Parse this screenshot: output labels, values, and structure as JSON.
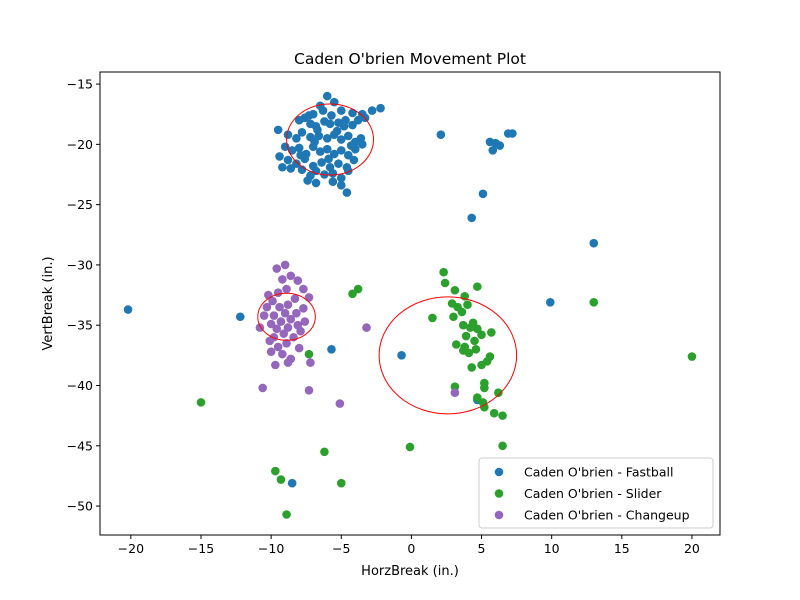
{
  "chart_data": {
    "type": "scatter",
    "title": "Caden O'brien Movement Plot",
    "xlabel": "HorzBreak (in.)",
    "ylabel": "VertBreak (in.)",
    "xlim": [
      -22.2,
      22.0
    ],
    "ylim": [
      -52.4,
      -14.0
    ],
    "xticks": [
      -20,
      -15,
      -10,
      -5,
      0,
      5,
      10,
      15,
      20
    ],
    "yticks": [
      -15,
      -20,
      -25,
      -30,
      -35,
      -40,
      -45,
      -50
    ],
    "grid": false,
    "legend_position": "lower-right",
    "series": [
      {
        "name": "Caden O'brien - Fastball",
        "color": "#1f77b4",
        "points": [
          [
            -6.5,
            -16.8
          ],
          [
            -7.0,
            -17.5
          ],
          [
            -5.0,
            -17.2
          ],
          [
            -4.2,
            -17.4
          ],
          [
            -3.5,
            -17.5
          ],
          [
            -2.8,
            -17.2
          ],
          [
            -2.2,
            -17.0
          ],
          [
            -6.0,
            -16.0
          ],
          [
            -5.5,
            -16.5
          ],
          [
            -7.6,
            -17.8
          ],
          [
            -8.0,
            -18.0
          ],
          [
            -7.2,
            -18.3
          ],
          [
            -6.8,
            -18.5
          ],
          [
            -6.2,
            -18.1
          ],
          [
            -5.8,
            -18.3
          ],
          [
            -5.2,
            -18.2
          ],
          [
            -4.8,
            -18.5
          ],
          [
            -4.2,
            -18.4
          ],
          [
            -3.8,
            -18.0
          ],
          [
            -3.3,
            -17.8
          ],
          [
            -9.5,
            -18.8
          ],
          [
            -8.8,
            -19.2
          ],
          [
            -8.2,
            -19.5
          ],
          [
            -7.8,
            -19.0
          ],
          [
            -7.2,
            -19.4
          ],
          [
            -6.6,
            -19.3
          ],
          [
            -6.0,
            -19.5
          ],
          [
            -5.5,
            -19.2
          ],
          [
            -5.0,
            -19.6
          ],
          [
            -4.5,
            -19.3
          ],
          [
            -4.0,
            -19.8
          ],
          [
            -3.6,
            -19.5
          ],
          [
            -9.0,
            -20.2
          ],
          [
            -8.5,
            -20.5
          ],
          [
            -8.0,
            -20.3
          ],
          [
            -7.5,
            -20.8
          ],
          [
            -7.0,
            -20.2
          ],
          [
            -6.5,
            -20.6
          ],
          [
            -6.0,
            -20.4
          ],
          [
            -5.5,
            -20.8
          ],
          [
            -5.0,
            -20.5
          ],
          [
            -4.5,
            -20.9
          ],
          [
            -4.0,
            -20.4
          ],
          [
            -3.5,
            -20.0
          ],
          [
            -9.4,
            -21.0
          ],
          [
            -8.8,
            -21.3
          ],
          [
            -8.2,
            -21.6
          ],
          [
            -7.6,
            -21.2
          ],
          [
            -7.0,
            -21.8
          ],
          [
            -6.4,
            -21.5
          ],
          [
            -5.8,
            -21.9
          ],
          [
            -5.2,
            -21.6
          ],
          [
            -4.6,
            -21.9
          ],
          [
            -4.1,
            -21.3
          ],
          [
            -9.2,
            -21.9
          ],
          [
            -8.6,
            -22.0
          ],
          [
            -7.8,
            -22.1
          ],
          [
            -7.2,
            -22.6
          ],
          [
            -6.8,
            -22.2
          ],
          [
            -6.2,
            -22.5
          ],
          [
            -5.6,
            -22.4
          ],
          [
            -5.0,
            -22.8
          ],
          [
            -4.5,
            -22.2
          ],
          [
            -7.4,
            -23.0
          ],
          [
            -6.8,
            -23.2
          ],
          [
            -5.6,
            -23.1
          ],
          [
            -5.0,
            -23.4
          ],
          [
            -4.6,
            -24.0
          ],
          [
            -6.3,
            -17.2
          ],
          [
            -5.7,
            -17.6
          ],
          [
            -5.3,
            -18.9
          ],
          [
            -6.9,
            -19.8
          ],
          [
            -4.7,
            -18.0
          ],
          [
            -7.9,
            -20.9
          ],
          [
            -5.9,
            -21.2
          ],
          [
            -6.7,
            -18.8
          ],
          [
            -4.3,
            -20.1
          ],
          [
            -7.3,
            -17.6
          ],
          [
            2.1,
            -19.2
          ],
          [
            5.6,
            -19.8
          ],
          [
            6.0,
            -19.9
          ],
          [
            6.3,
            -20.1
          ],
          [
            5.8,
            -20.5
          ],
          [
            6.9,
            -19.1
          ],
          [
            7.2,
            -19.1
          ],
          [
            5.1,
            -24.1
          ],
          [
            4.3,
            -26.1
          ],
          [
            13.0,
            -28.2
          ],
          [
            9.9,
            -33.1
          ],
          [
            -20.2,
            -33.7
          ],
          [
            -12.2,
            -34.3
          ],
          [
            -5.7,
            -37.0
          ],
          [
            -0.7,
            -37.5
          ],
          [
            4.7,
            -41.2
          ],
          [
            -8.5,
            -48.1
          ]
        ]
      },
      {
        "name": "Caden O'brien - Slider",
        "color": "#2ca02c",
        "points": [
          [
            2.3,
            -30.6
          ],
          [
            2.4,
            -31.5
          ],
          [
            4.7,
            -31.8
          ],
          [
            3.1,
            -32.1
          ],
          [
            3.8,
            -32.6
          ],
          [
            2.9,
            -33.2
          ],
          [
            3.3,
            -33.5
          ],
          [
            4.0,
            -33.3
          ],
          [
            3.6,
            -33.9
          ],
          [
            3.0,
            -34.3
          ],
          [
            1.5,
            -34.4
          ],
          [
            4.4,
            -34.8
          ],
          [
            3.7,
            -35.0
          ],
          [
            4.2,
            -35.2
          ],
          [
            4.7,
            -35.3
          ],
          [
            5.0,
            -35.8
          ],
          [
            5.7,
            -35.6
          ],
          [
            3.9,
            -35.9
          ],
          [
            4.5,
            -36.3
          ],
          [
            3.2,
            -36.6
          ],
          [
            3.8,
            -36.8
          ],
          [
            4.6,
            -37.0
          ],
          [
            4.1,
            -37.3
          ],
          [
            3.7,
            -37.1
          ],
          [
            5.6,
            -37.6
          ],
          [
            5.4,
            -38.0
          ],
          [
            5.0,
            -38.3
          ],
          [
            4.3,
            -38.5
          ],
          [
            5.2,
            -39.8
          ],
          [
            5.2,
            -40.2
          ],
          [
            3.1,
            -40.1
          ],
          [
            6.2,
            -40.6
          ],
          [
            4.7,
            -41.0
          ],
          [
            5.1,
            -41.4
          ],
          [
            5.2,
            -41.8
          ],
          [
            5.9,
            -42.3
          ],
          [
            6.5,
            -42.5
          ],
          [
            6.5,
            -45.0
          ],
          [
            13.0,
            -33.1
          ],
          [
            20.0,
            -37.6
          ],
          [
            -3.8,
            -32.0
          ],
          [
            -4.2,
            -32.4
          ],
          [
            -15.0,
            -41.4
          ],
          [
            -7.3,
            -37.4
          ],
          [
            -9.7,
            -47.1
          ],
          [
            -9.3,
            -47.8
          ],
          [
            -6.2,
            -45.5
          ],
          [
            -5.0,
            -48.1
          ],
          [
            -8.9,
            -50.7
          ],
          [
            -0.1,
            -45.1
          ]
        ]
      },
      {
        "name": "Caden O'brien - Changeup",
        "color": "#9467bd",
        "points": [
          [
            -9.0,
            -30.0
          ],
          [
            -9.6,
            -30.3
          ],
          [
            -8.6,
            -30.9
          ],
          [
            -9.2,
            -31.2
          ],
          [
            -8.1,
            -31.3
          ],
          [
            -7.7,
            -32.0
          ],
          [
            -8.9,
            -32.0
          ],
          [
            -9.5,
            -32.3
          ],
          [
            -10.2,
            -32.5
          ],
          [
            -7.3,
            -32.7
          ],
          [
            -8.3,
            -32.8
          ],
          [
            -9.9,
            -33.0
          ],
          [
            -8.8,
            -33.3
          ],
          [
            -9.4,
            -33.5
          ],
          [
            -10.3,
            -33.5
          ],
          [
            -7.7,
            -33.6
          ],
          [
            -8.2,
            -34.0
          ],
          [
            -9.0,
            -34.0
          ],
          [
            -9.8,
            -34.2
          ],
          [
            -10.5,
            -34.2
          ],
          [
            -8.6,
            -34.5
          ],
          [
            -9.3,
            -34.7
          ],
          [
            -7.6,
            -34.7
          ],
          [
            -10.0,
            -34.9
          ],
          [
            -8.1,
            -35.0
          ],
          [
            -8.8,
            -35.2
          ],
          [
            -9.6,
            -35.3
          ],
          [
            -10.8,
            -35.2
          ],
          [
            -7.9,
            -35.5
          ],
          [
            -9.1,
            -35.7
          ],
          [
            -8.4,
            -36.0
          ],
          [
            -9.8,
            -36.0
          ],
          [
            -10.1,
            -36.3
          ],
          [
            -8.9,
            -36.5
          ],
          [
            -9.5,
            -36.8
          ],
          [
            -8.0,
            -36.9
          ],
          [
            -10.0,
            -37.2
          ],
          [
            -9.2,
            -37.4
          ],
          [
            -8.6,
            -37.8
          ],
          [
            -9.7,
            -38.3
          ],
          [
            -8.8,
            -38.1
          ],
          [
            -7.2,
            -38.1
          ],
          [
            -10.6,
            -40.2
          ],
          [
            -7.3,
            -40.4
          ],
          [
            -3.2,
            -35.2
          ],
          [
            -5.1,
            -41.5
          ],
          [
            3.1,
            -40.6
          ]
        ]
      }
    ],
    "ellipses": [
      {
        "cx": -5.8,
        "cy": -19.6,
        "rx": 3.1,
        "ry": 2.95,
        "color": "#ff0000"
      },
      {
        "cx": -8.9,
        "cy": -34.3,
        "rx": 2.05,
        "ry": 1.95,
        "color": "#ff0000"
      },
      {
        "cx": 2.6,
        "cy": -37.5,
        "rx": 4.9,
        "ry": 4.85,
        "color": "#ff0000"
      }
    ]
  }
}
